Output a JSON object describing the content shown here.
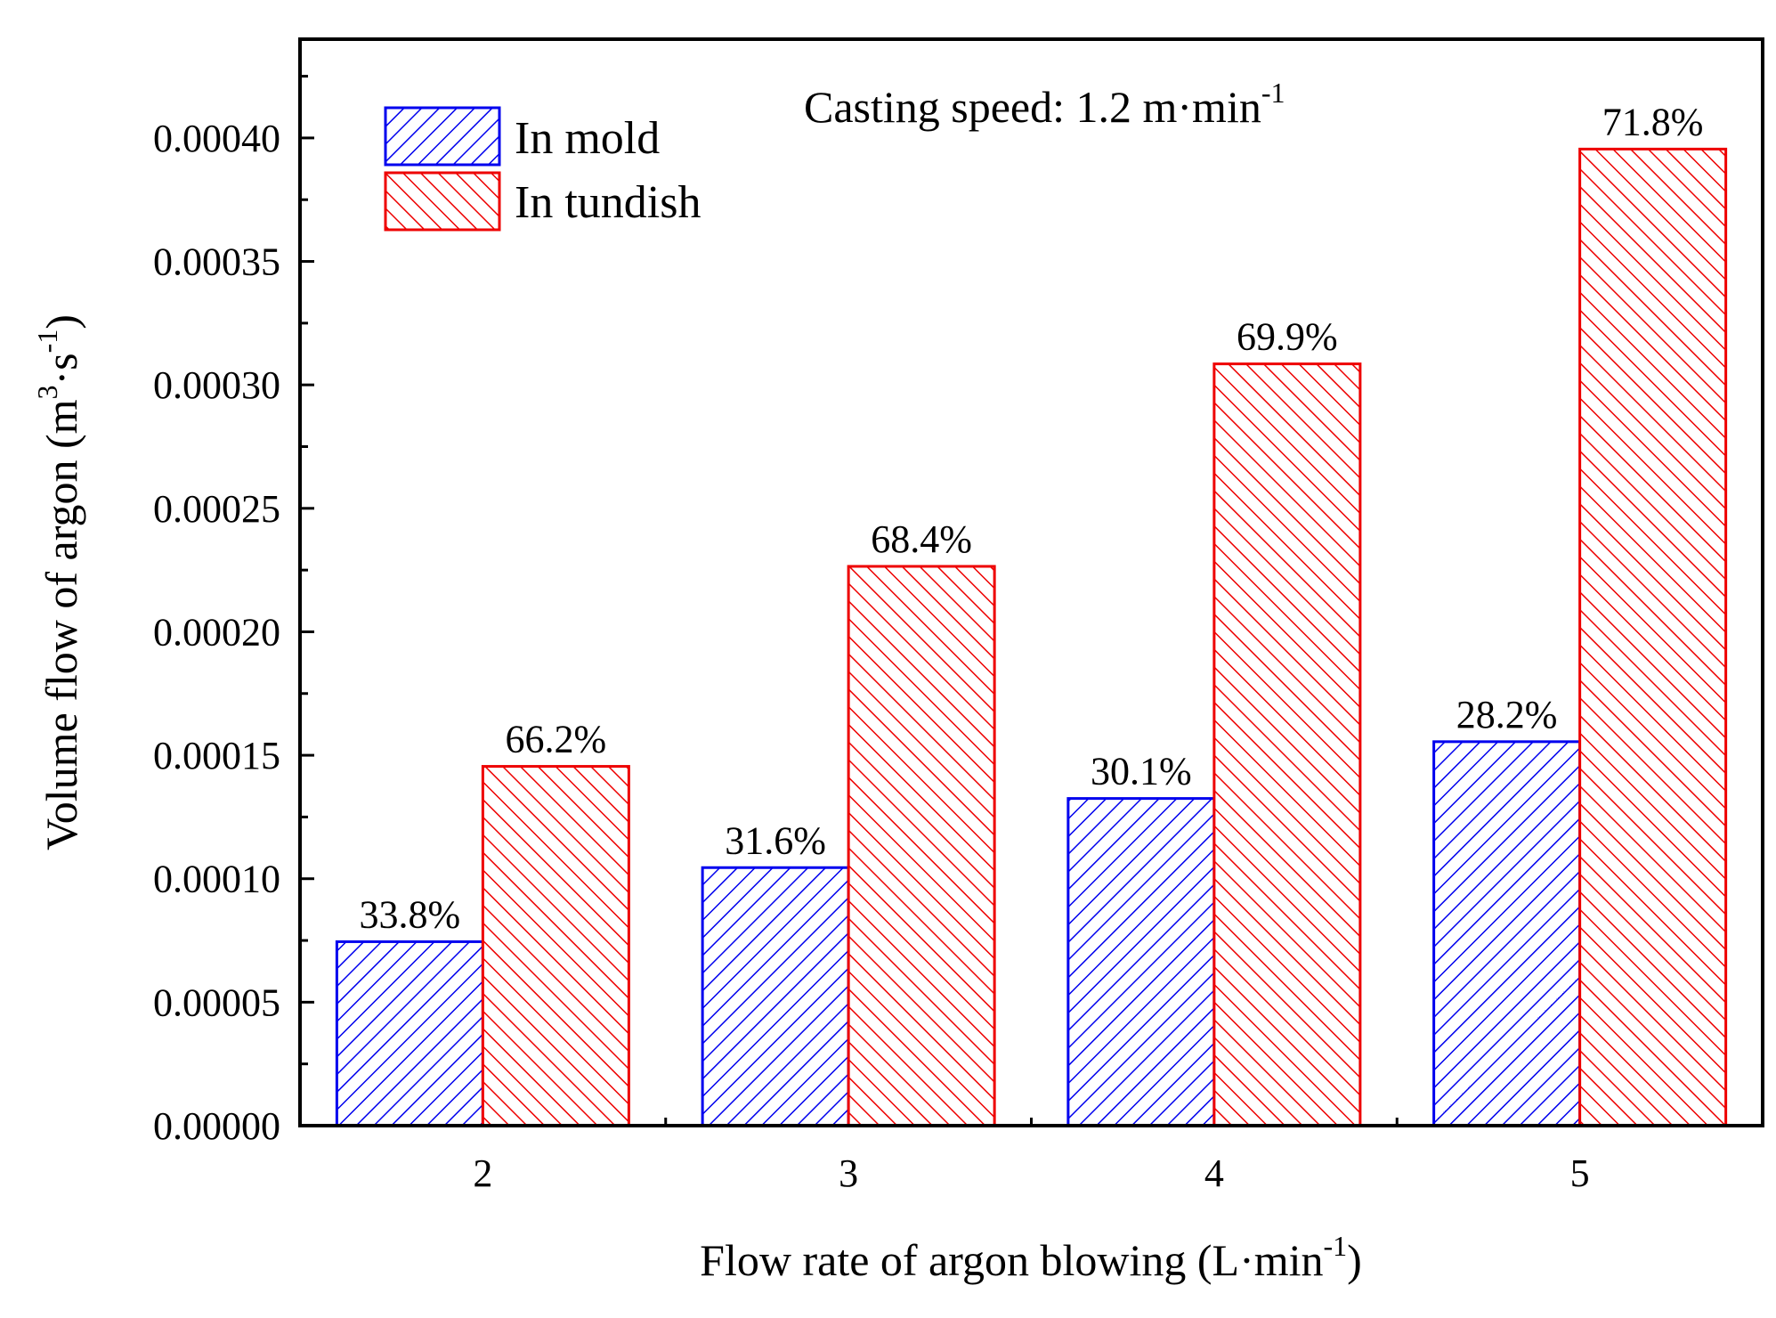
{
  "chart_data": {
    "type": "bar",
    "title": "",
    "annotation": {
      "text": "Casting speed: 1.2 m·min",
      "superscript": "-1"
    },
    "xlabel": {
      "text": "Flow rate of argon blowing (L·min",
      "superscript": "-1",
      "close": ")"
    },
    "ylabel": {
      "prefix": "Volume flow of argon (m",
      "sup1": "3",
      "mid": "·s",
      "sup2": "-1",
      "close": ")"
    },
    "categories": [
      "2",
      "3",
      "4",
      "5"
    ],
    "ylim": [
      0,
      0.00044
    ],
    "yticks": [
      0,
      5e-05,
      0.0001,
      0.00015,
      0.0002,
      0.00025,
      0.0003,
      0.00035,
      0.0004
    ],
    "ytick_labels": [
      "0.00000",
      "0.00005",
      "0.00010",
      "0.00015",
      "0.00020",
      "0.00025",
      "0.00030",
      "0.00035",
      "0.00040"
    ],
    "series": [
      {
        "name": "In mold",
        "color": "#0000ee",
        "values": [
          7.45e-05,
          0.0001045,
          0.0001325,
          0.0001555
        ],
        "labels": [
          "33.8%",
          "31.6%",
          "30.1%",
          "28.2%"
        ]
      },
      {
        "name": "In tundish",
        "color": "#ee0000",
        "values": [
          0.0001455,
          0.0002265,
          0.0003085,
          0.0003955
        ],
        "labels": [
          "66.2%",
          "68.4%",
          "69.9%",
          "71.8%"
        ]
      }
    ],
    "legend_position": "top-left",
    "grid": false
  }
}
